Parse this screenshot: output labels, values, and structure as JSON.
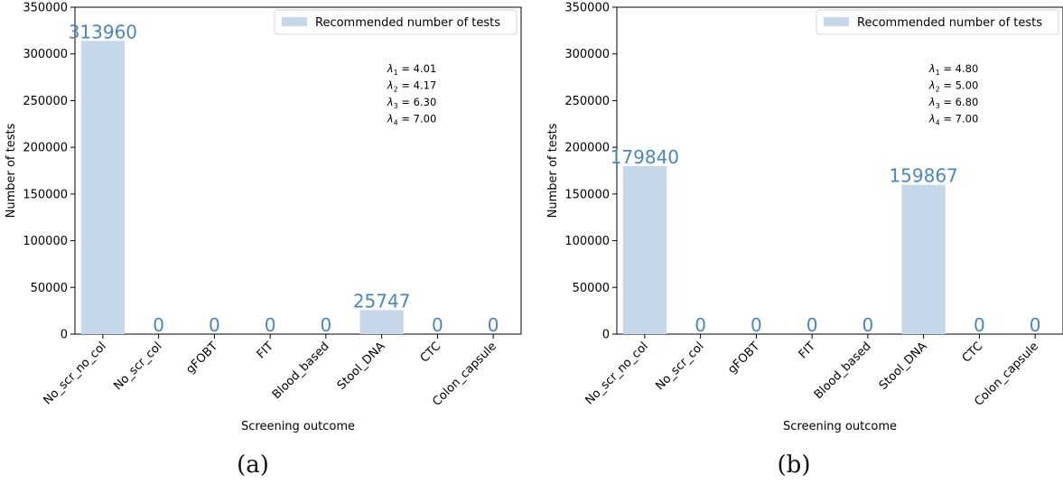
{
  "chart_data": [
    {
      "type": "bar",
      "panel_label": "(a)",
      "categories": [
        "No_scr_no_col",
        "No_scr_col",
        "gFOBT",
        "FIT",
        "Blood_based",
        "Stool_DNA",
        "CTC",
        "Colon_capsule"
      ],
      "series": [
        {
          "name": "Recommended number of tests",
          "values": [
            313960,
            0,
            0,
            0,
            0,
            25747,
            0,
            0
          ]
        }
      ],
      "value_labels": [
        "313960",
        "0",
        "0",
        "0",
        "0",
        "25747",
        "0",
        "0"
      ],
      "xlabel": "Screening outcome",
      "ylabel": "Number of tests",
      "ylim": [
        0,
        350000
      ],
      "yticks": [
        "0",
        "50000",
        "100000",
        "150000",
        "200000",
        "250000",
        "300000",
        "350000"
      ],
      "legend": {
        "entry": "Recommended number of tests",
        "placement": "upper-right"
      },
      "annotation": [
        {
          "sym": "λ",
          "sub": "1",
          "val": " = 4.01"
        },
        {
          "sym": "λ",
          "sub": "2",
          "val": " = 4.17"
        },
        {
          "sym": "λ",
          "sub": "3",
          "val": " = 6.30"
        },
        {
          "sym": "λ",
          "sub": "4",
          "val": " = 7.00"
        }
      ],
      "grid": false,
      "colors": {
        "bar": "#c5d7e8",
        "label": "#4a86b8"
      }
    },
    {
      "type": "bar",
      "panel_label": "(b)",
      "categories": [
        "No_scr_no_col",
        "No_scr_col",
        "gFOBT",
        "FIT",
        "Blood_based",
        "Stool_DNA",
        "CTC",
        "Colon_capsule"
      ],
      "series": [
        {
          "name": "Recommended number of tests",
          "values": [
            179840,
            0,
            0,
            0,
            0,
            159867,
            0,
            0
          ]
        }
      ],
      "value_labels": [
        "179840",
        "0",
        "0",
        "0",
        "0",
        "159867",
        "0",
        "0"
      ],
      "xlabel": "Screening outcome",
      "ylabel": "Number of tests",
      "ylim": [
        0,
        350000
      ],
      "yticks": [
        "0",
        "50000",
        "100000",
        "150000",
        "200000",
        "250000",
        "300000",
        "350000"
      ],
      "legend": {
        "entry": "Recommended number of tests",
        "placement": "upper-right"
      },
      "annotation": [
        {
          "sym": "λ",
          "sub": "1",
          "val": " = 4.80"
        },
        {
          "sym": "λ",
          "sub": "2",
          "val": " = 5.00"
        },
        {
          "sym": "λ",
          "sub": "3",
          "val": " = 6.80"
        },
        {
          "sym": "λ",
          "sub": "4",
          "val": " = 7.00"
        }
      ],
      "grid": false,
      "colors": {
        "bar": "#c5d7e8",
        "label": "#4a86b8"
      }
    }
  ]
}
